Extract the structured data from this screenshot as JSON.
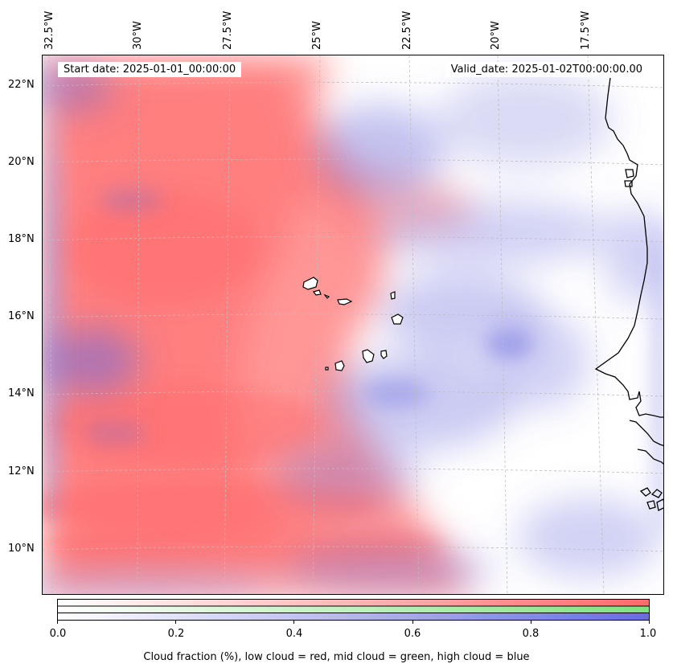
{
  "map": {
    "start_date_label": "Start date: 2025-01-01_00:00:00",
    "valid_date_label": "Valid_date: 2025-01-02T00:00:00.00",
    "longitude_labels": [
      "32.5°W",
      "30°W",
      "27.5°W",
      "25°W",
      "22.5°W",
      "20°W",
      "17.5°W"
    ],
    "latitude_labels": [
      "22°N",
      "20°N",
      "18°N",
      "16°N",
      "14°N",
      "12°N",
      "10°N"
    ],
    "colors": {
      "low_cloud": "#ff6b6b",
      "mid_cloud": "#7ee27e",
      "high_cloud": "#6b6bdd",
      "coastline": "#000000"
    }
  },
  "colorbar": {
    "tick_labels": [
      "0.0",
      "0.2",
      "0.4",
      "0.6",
      "0.8",
      "1.0"
    ],
    "caption": "Cloud fraction (%), low cloud = red, mid cloud = green, high cloud = blue"
  }
}
